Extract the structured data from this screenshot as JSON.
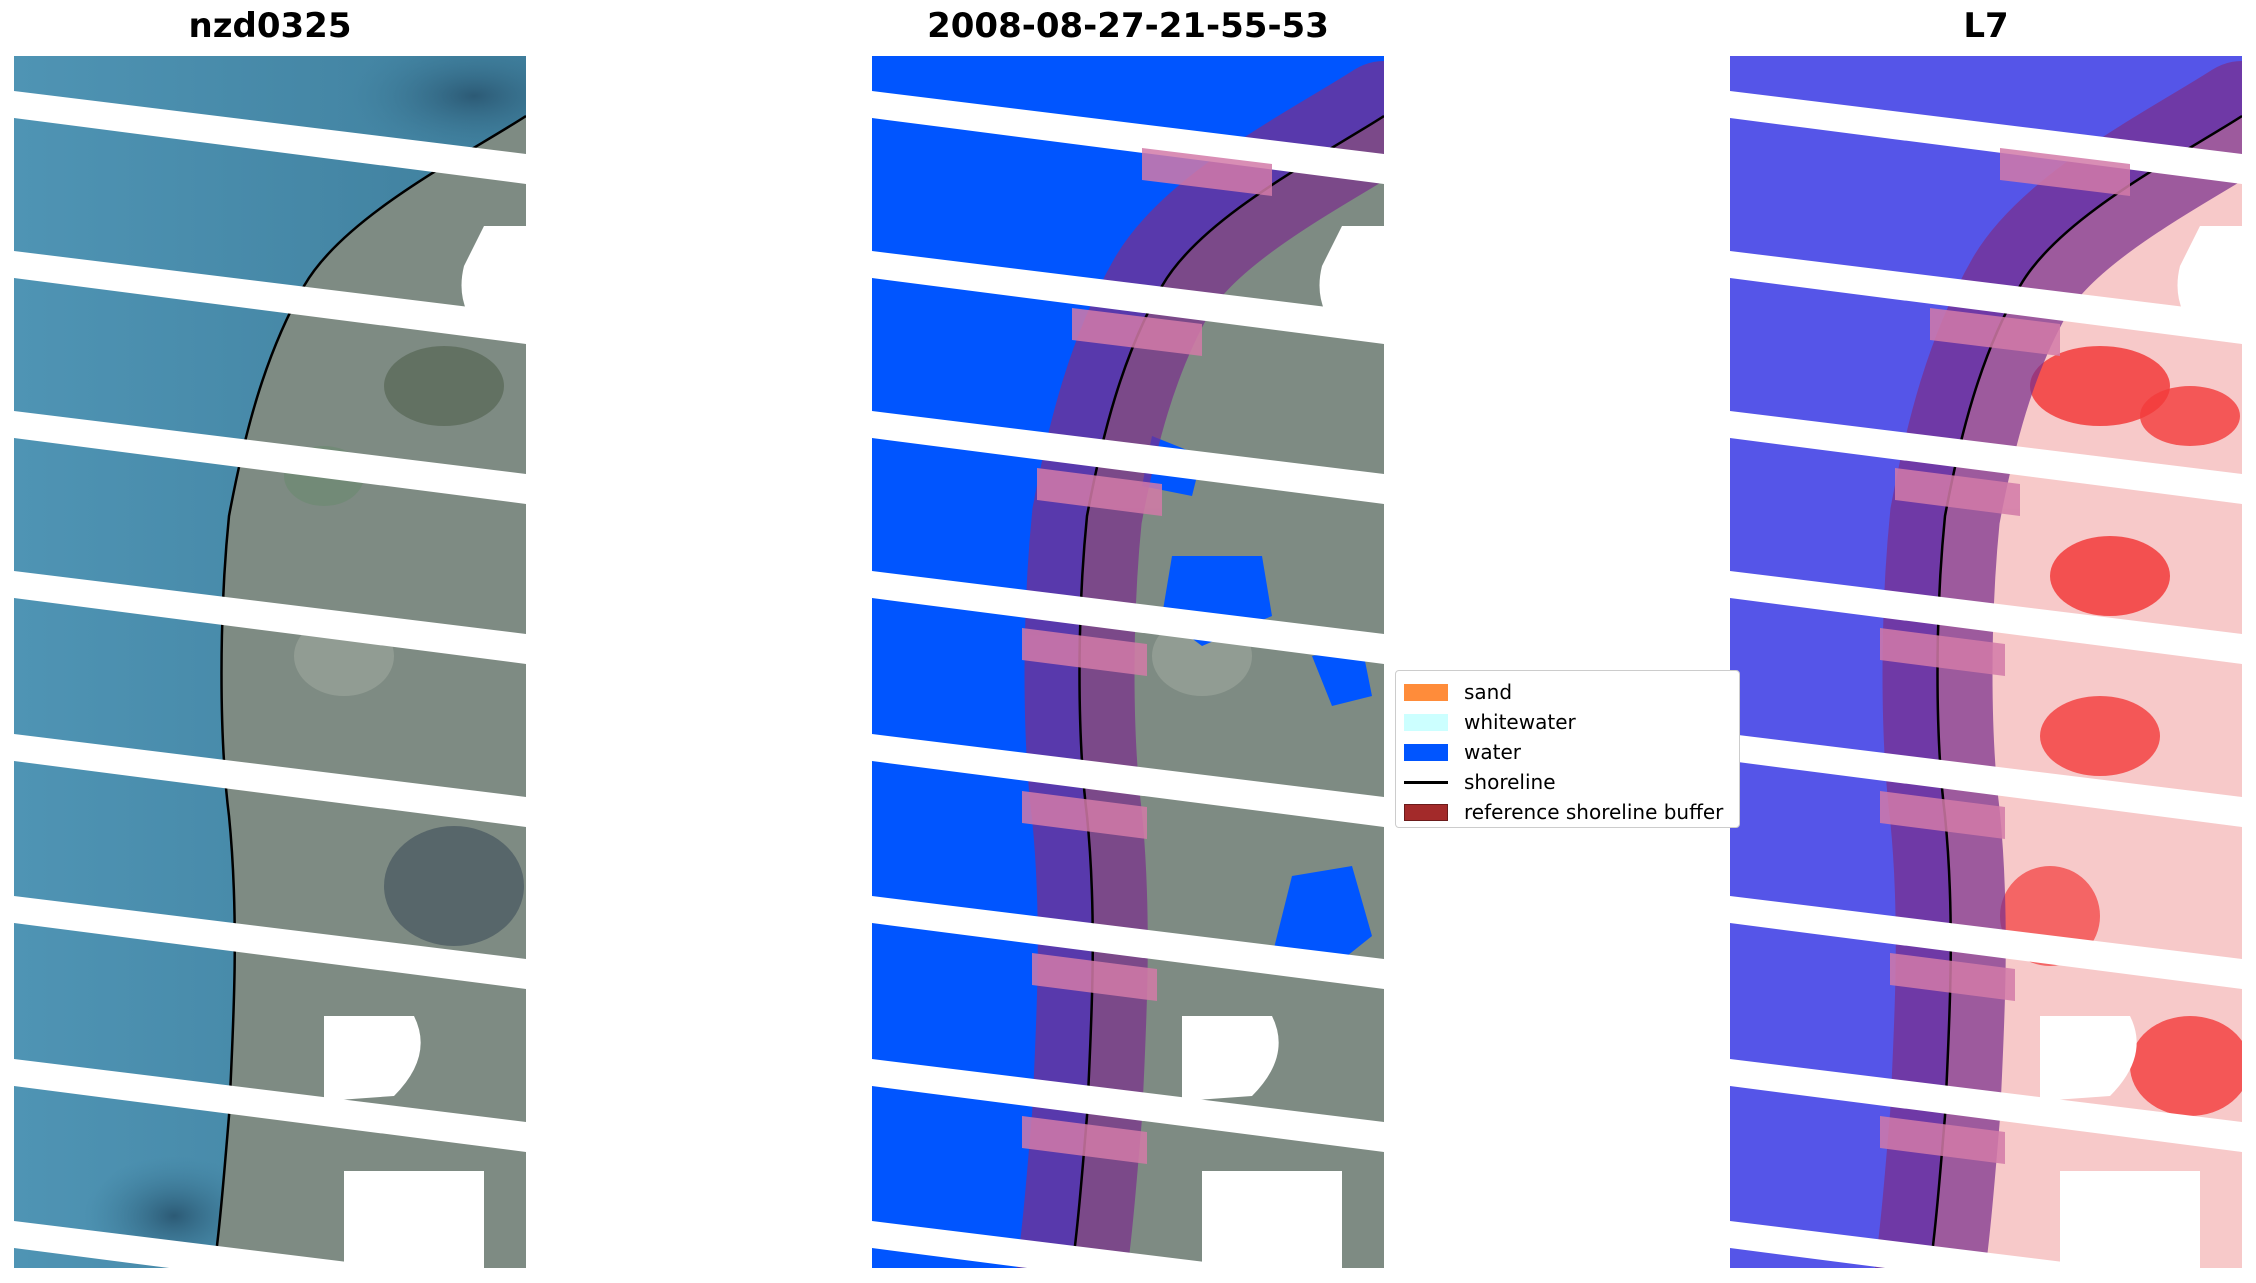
{
  "panels": [
    {
      "title": "nzd0325"
    },
    {
      "title": "2008-08-27-21-55-53"
    },
    {
      "title": "L7"
    }
  ],
  "legend": {
    "items": [
      {
        "label": "sand",
        "color": "#ff8c3a",
        "kind": "patch"
      },
      {
        "label": "whitewater",
        "color": "#ccffff",
        "kind": "patch"
      },
      {
        "label": "water",
        "color": "#0055ff",
        "kind": "patch"
      },
      {
        "label": "shoreline",
        "color": "#000000",
        "kind": "line"
      },
      {
        "label": "reference shoreline buffer",
        "color": "#a32a2a",
        "kind": "patch"
      }
    ]
  },
  "colors": {
    "sea": "#4a8fae",
    "land": "#7c8a84",
    "water_class": "#0055ff",
    "index_water": "#4c4ce6",
    "index_land": "#f23b3b",
    "buffer": "#7a2f8c"
  }
}
